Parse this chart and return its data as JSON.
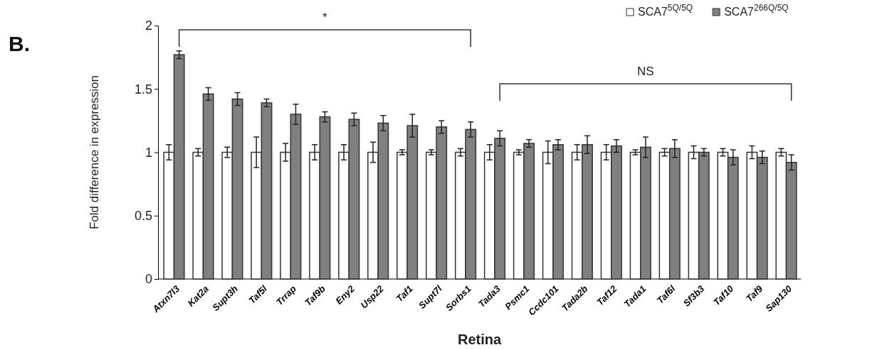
{
  "chart_data": {
    "type": "bar",
    "xlabel": "Retina",
    "ylabel": "Fold difference in expression",
    "categories": [
      "Atxn7l3",
      "Kat2a",
      "Supt3h",
      "Taf5l",
      "Trrap",
      "Taf9b",
      "Eny2",
      "Usp22",
      "Taf1",
      "Supt7l",
      "Sorbs1",
      "Tada3",
      "Psmc1",
      "Ccdc101",
      "Tada2b",
      "Taf12",
      "Tada1",
      "Taf6l",
      "Sf3b3",
      "Taf10",
      "Taf9",
      "Sap130"
    ],
    "series": [
      {
        "name": "SCA7$^{5Q/5Q}$",
        "color": "#ffffff",
        "values": [
          1,
          1,
          1,
          1,
          1,
          1,
          1,
          1,
          1,
          1,
          1,
          1,
          1,
          1,
          1,
          1,
          1,
          1,
          1,
          1,
          1,
          1
        ],
        "errors": [
          0.06,
          0.03,
          0.04,
          0.12,
          0.07,
          0.06,
          0.06,
          0.08,
          0.02,
          0.02,
          0.03,
          0.06,
          0.02,
          0.09,
          0.06,
          0.06,
          0.02,
          0.03,
          0.05,
          0.03,
          0.05,
          0.03
        ]
      },
      {
        "name": "SCA7$^{266Q/5Q}$",
        "color": "#808080",
        "values": [
          1.77,
          1.46,
          1.42,
          1.39,
          1.3,
          1.28,
          1.26,
          1.23,
          1.21,
          1.2,
          1.18,
          1.11,
          1.07,
          1.06,
          1.06,
          1.05,
          1.04,
          1.03,
          1.0,
          0.96,
          0.96,
          0.92
        ],
        "errors": [
          0.03,
          0.05,
          0.05,
          0.03,
          0.08,
          0.04,
          0.05,
          0.06,
          0.09,
          0.05,
          0.06,
          0.06,
          0.03,
          0.04,
          0.07,
          0.05,
          0.08,
          0.07,
          0.03,
          0.06,
          0.05,
          0.06
        ]
      }
    ],
    "ylim": [
      0,
      2
    ],
    "yticks": [
      0,
      0.5,
      1,
      1.5,
      2
    ],
    "grid": false,
    "legend": "top right",
    "annotations": [
      "B.",
      "*",
      "NS"
    ]
  }
}
